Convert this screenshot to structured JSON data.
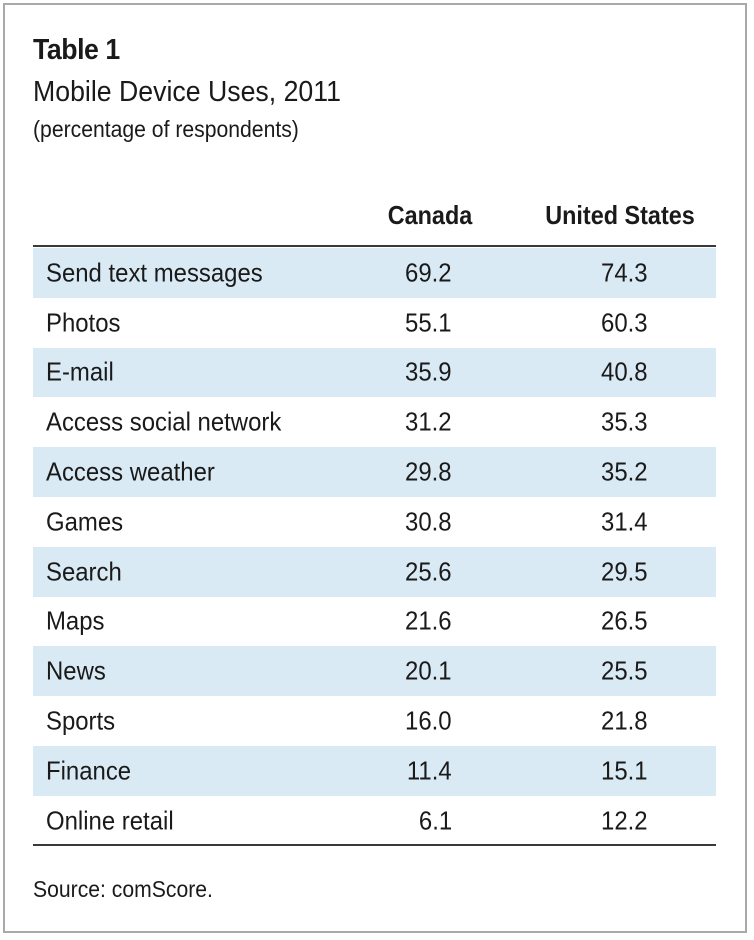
{
  "table": {
    "heading": "Table 1",
    "title": "Mobile Device Uses, 2011",
    "units": "(percentage of respondents)",
    "columns": [
      "Canada",
      "United States"
    ],
    "rows": [
      {
        "label": "Send text messages",
        "canada": "69.2",
        "us": "74.3",
        "shaded": true
      },
      {
        "label": "Photos",
        "canada": "55.1",
        "us": "60.3",
        "shaded": false
      },
      {
        "label": "E-mail",
        "canada": "35.9",
        "us": "40.8",
        "shaded": true
      },
      {
        "label": "Access social network",
        "canada": "31.2",
        "us": "35.3",
        "shaded": false
      },
      {
        "label": "Access weather",
        "canada": "29.8",
        "us": "35.2",
        "shaded": true
      },
      {
        "label": "Games",
        "canada": "30.8",
        "us": "31.4",
        "shaded": false
      },
      {
        "label": "Search",
        "canada": "25.6",
        "us": "29.5",
        "shaded": true
      },
      {
        "label": "Maps",
        "canada": "21.6",
        "us": "26.5",
        "shaded": false
      },
      {
        "label": "News",
        "canada": "20.1",
        "us": "25.5",
        "shaded": true
      },
      {
        "label": "Sports",
        "canada": "16.0",
        "us": "21.8",
        "shaded": false
      },
      {
        "label": "Finance",
        "canada": "11.4",
        "us": "15.1",
        "shaded": true
      },
      {
        "label": "Online retail",
        "canada": "6.1",
        "us": "12.2",
        "shaded": false
      }
    ],
    "source": "Source: comScore."
  },
  "colors": {
    "row_shade": "#d9eaf5",
    "frame": "#a9a9a9",
    "rule": "#3a3a3a"
  }
}
